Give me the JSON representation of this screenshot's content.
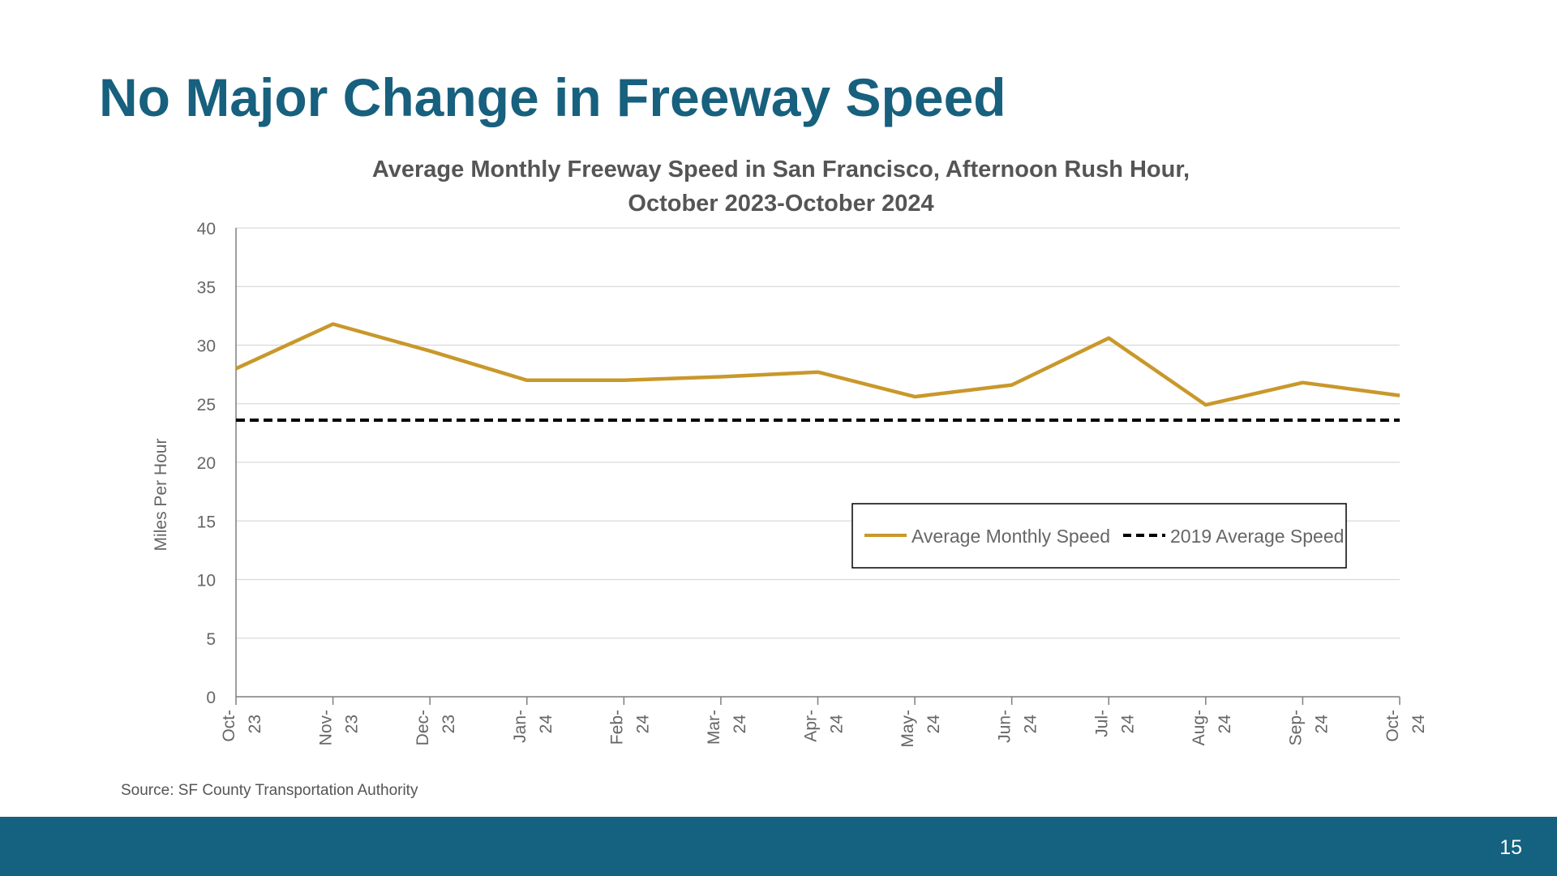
{
  "slide": {
    "title": "No Major Change in Freeway Speed",
    "source": "Source: SF County Transportation Authority",
    "page_number": "15"
  },
  "colors": {
    "title": "#17607e",
    "footer": "#14627f",
    "series_speed": "#c9982b",
    "series_baseline": "#000000",
    "gridline": "#d9d9d9"
  },
  "chart_data": {
    "type": "line",
    "title_lines": [
      "Average Monthly Freeway Speed in San Francisco, Afternoon Rush Hour,",
      "October 2023-October 2024"
    ],
    "xlabel": "",
    "ylabel": "Miles Per Hour",
    "ylim": [
      0,
      40
    ],
    "yticks": [
      0,
      5,
      10,
      15,
      20,
      25,
      30,
      35,
      40
    ],
    "grid": true,
    "legend_position": "lower-right",
    "categories": [
      [
        "Oct-",
        "23"
      ],
      [
        "Nov-",
        "23"
      ],
      [
        "Dec-",
        "23"
      ],
      [
        "Jan-",
        "24"
      ],
      [
        "Feb-",
        "24"
      ],
      [
        "Mar-",
        "24"
      ],
      [
        "Apr-",
        "24"
      ],
      [
        "May-",
        "24"
      ],
      [
        "Jun-",
        "24"
      ],
      [
        "Jul-",
        "24"
      ],
      [
        "Aug-",
        "24"
      ],
      [
        "Sep-",
        "24"
      ],
      [
        "Oct-",
        "24"
      ]
    ],
    "series": [
      {
        "name": "Average Monthly Speed",
        "style": "solid",
        "values": [
          28.0,
          31.8,
          29.5,
          27.0,
          27.0,
          27.3,
          27.7,
          25.6,
          26.6,
          30.6,
          24.9,
          26.8,
          25.7
        ]
      },
      {
        "name": "2019 Average Speed",
        "style": "dashed",
        "values": [
          23.6,
          23.6,
          23.6,
          23.6,
          23.6,
          23.6,
          23.6,
          23.6,
          23.6,
          23.6,
          23.6,
          23.6,
          23.6
        ]
      }
    ]
  }
}
